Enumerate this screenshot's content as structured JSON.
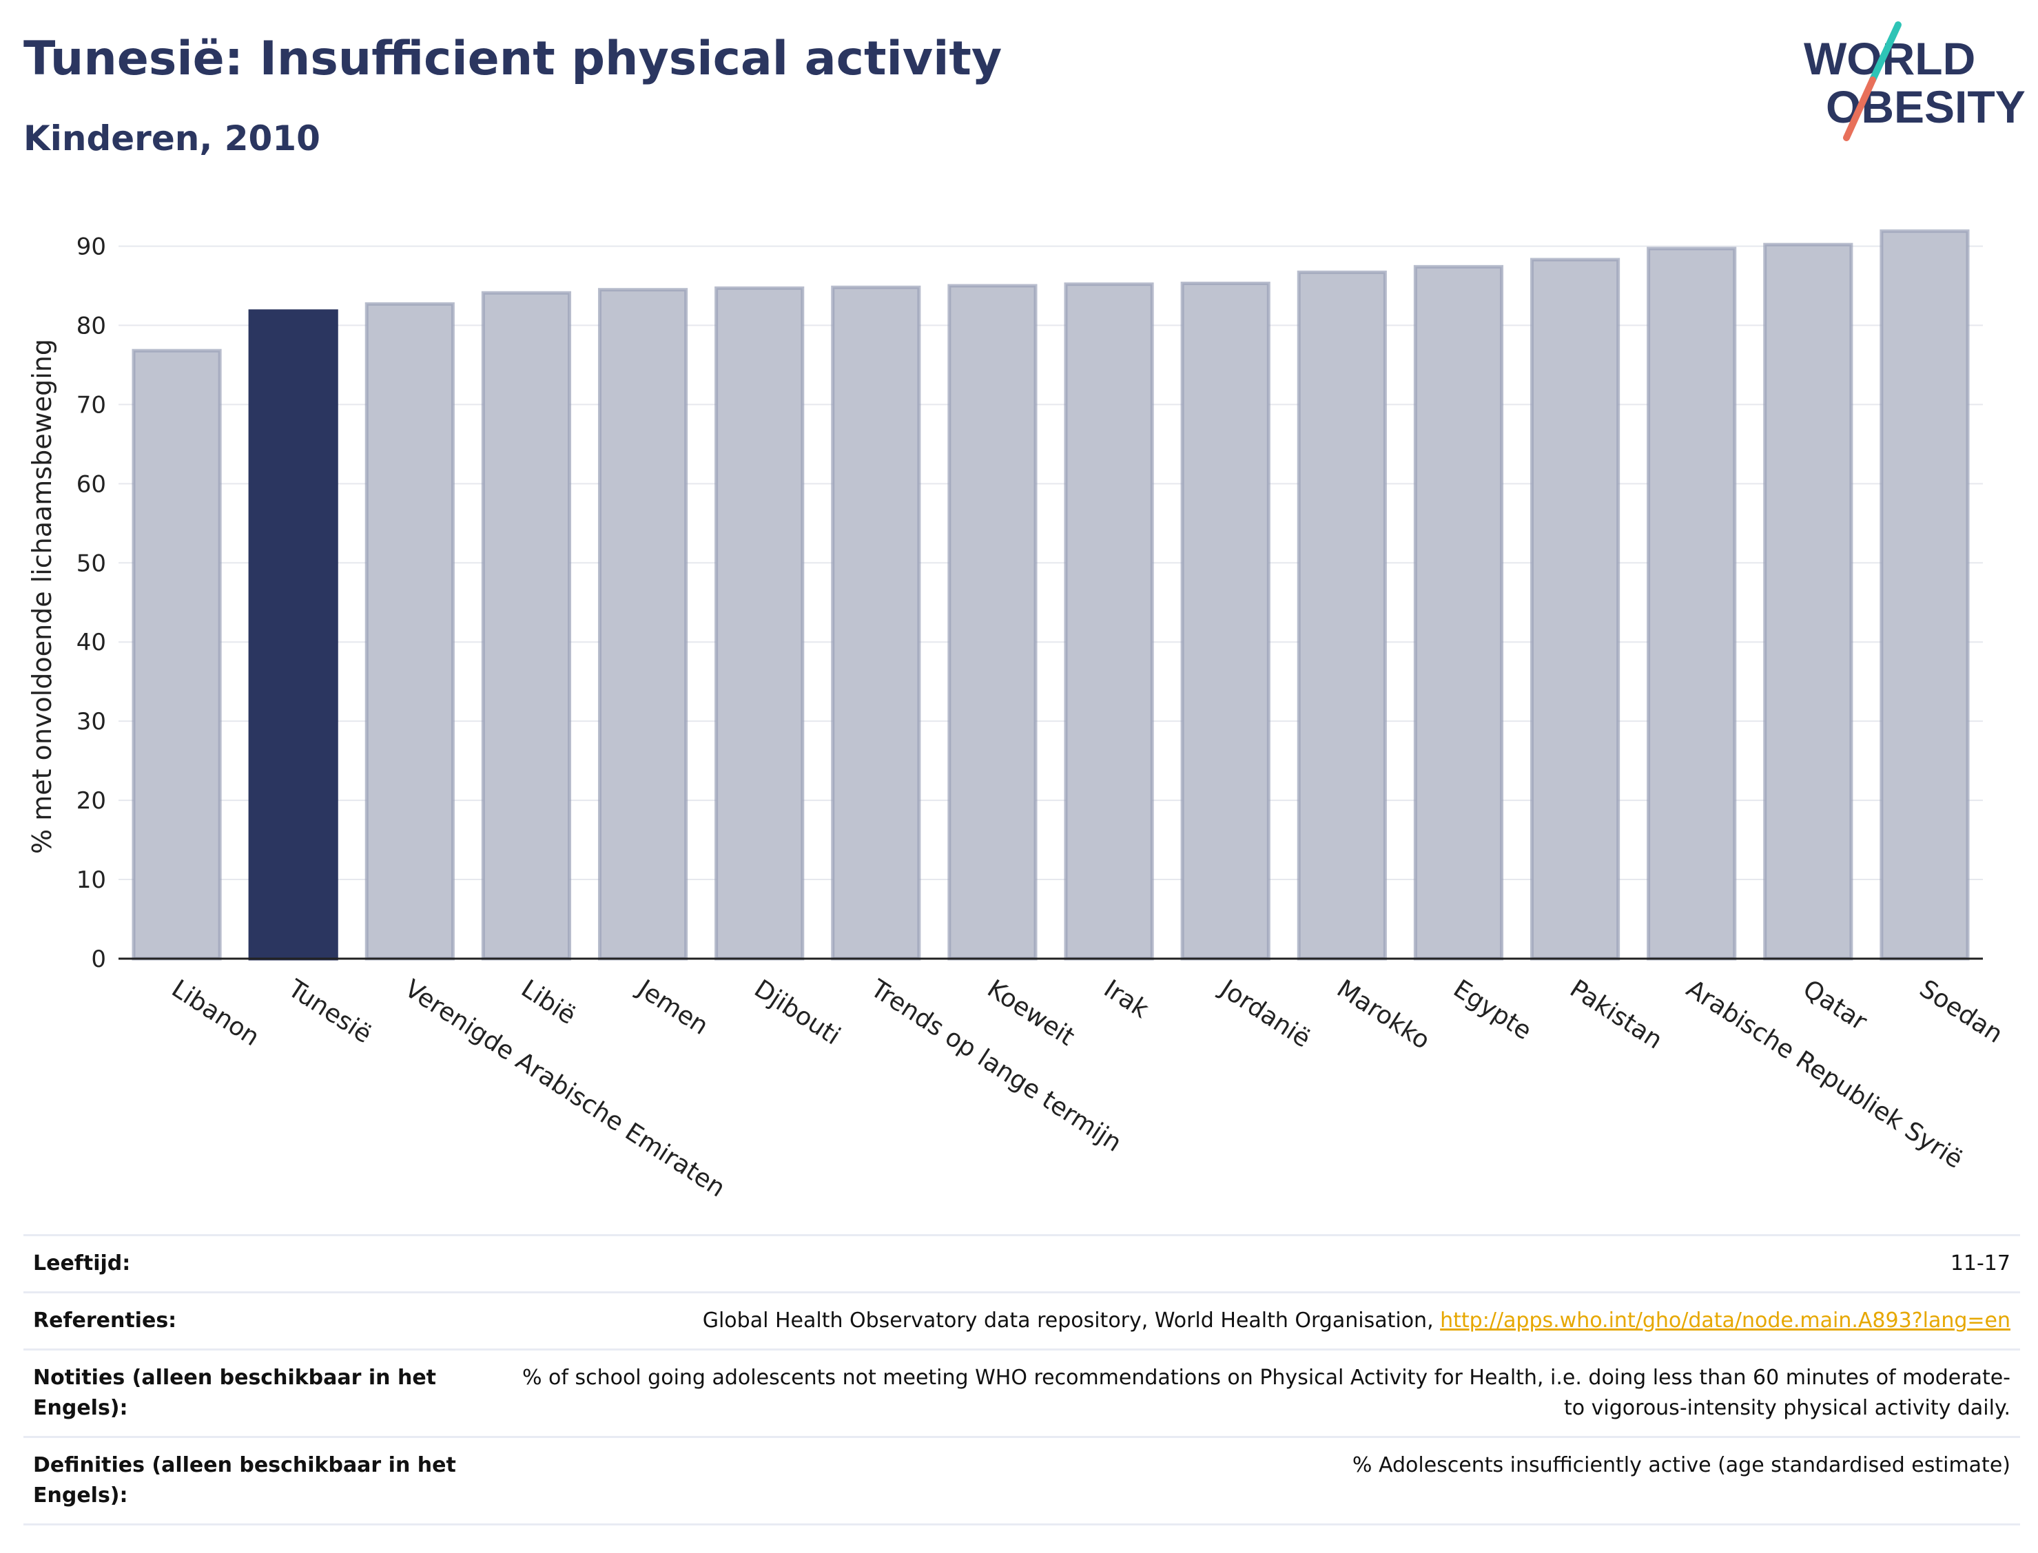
{
  "header": {
    "title": "Tunesië: Insufficient physical activity",
    "subtitle": "Kinderen, 2010"
  },
  "logo": {
    "line1": "WORLD",
    "line2": "OBESITY",
    "slash_colors": [
      "#2ec4b6",
      "#e8705a"
    ],
    "text_color": "#2b3660"
  },
  "chart_data": {
    "type": "bar",
    "title": "",
    "xlabel": "",
    "ylabel": "% met onvoldoende lichaamsbeweging",
    "ylim": [
      0,
      95
    ],
    "yticks": [
      0,
      10,
      20,
      30,
      40,
      50,
      60,
      70,
      80,
      90
    ],
    "grid": true,
    "highlight_category": "Tunesië",
    "colors": {
      "bar": "#bfc3d0",
      "bar_border": "#9aa1b8",
      "highlight": "#2b3660",
      "grid": "#e6e8ee",
      "axis": "#222222"
    },
    "categories": [
      "Libanon",
      "Tunesië",
      "Verenigde Arabische Emiraten",
      "Libië",
      "Jemen",
      "Djibouti",
      "Trends op lange termijn",
      "Koeweit",
      "Irak",
      "Jordanië",
      "Marokko",
      "Egypte",
      "Pakistan",
      "Arabische Republiek Syrië",
      "Qatar",
      "Soedan"
    ],
    "values": [
      76.8,
      81.8,
      82.7,
      84.1,
      84.5,
      84.7,
      84.8,
      85.0,
      85.2,
      85.3,
      86.7,
      87.4,
      88.3,
      89.7,
      90.2,
      91.9
    ]
  },
  "meta": {
    "rows": [
      {
        "label": "Leeftijd:",
        "value": "11-17"
      },
      {
        "label": "Referenties:",
        "value": "Global Health Observatory data repository, World Health Organisation, ",
        "link": "http://apps.who.int/gho/data/node.main.A893?lang=en"
      },
      {
        "label": "Notities (alleen beschikbaar in het Engels):",
        "value": "% of school going adolescents not meeting WHO recommendations on Physical Activity for Health, i.e. doing less than 60 minutes of moderate- to vigorous-intensity physical activity daily."
      },
      {
        "label": "Definities (alleen beschikbaar in het Engels):",
        "value": "% Adolescents insufficiently active (age standardised estimate)"
      }
    ]
  }
}
